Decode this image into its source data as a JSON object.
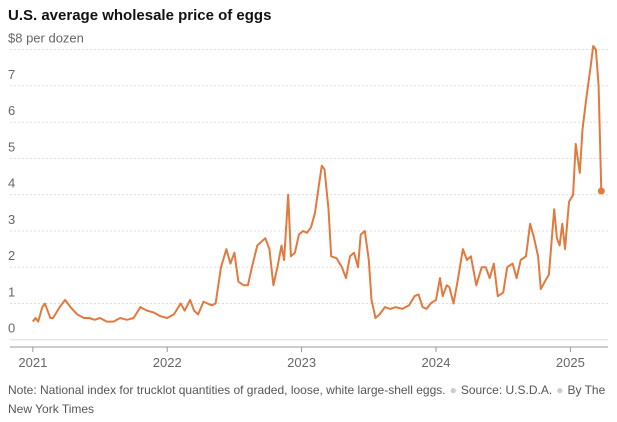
{
  "chart_data": {
    "type": "line",
    "title": "U.S. average wholesale price of eggs",
    "note": "Note: National index for trucklot quantities of graded, loose, white large-shell eggs.",
    "source": "Source: U.S.D.A.",
    "byline": "By The New York Times",
    "x": [
      2021.0,
      2021.02,
      2021.04,
      2021.07,
      2021.09,
      2021.11,
      2021.13,
      2021.15,
      2021.2,
      2021.24,
      2021.28,
      2021.33,
      2021.38,
      2021.42,
      2021.46,
      2021.5,
      2021.55,
      2021.6,
      2021.65,
      2021.7,
      2021.75,
      2021.8,
      2021.85,
      2021.9,
      2021.95,
      2022.0,
      2022.05,
      2022.1,
      2022.13,
      2022.17,
      2022.2,
      2022.23,
      2022.27,
      2022.3,
      2022.33,
      2022.36,
      2022.4,
      2022.44,
      2022.47,
      2022.5,
      2022.53,
      2022.57,
      2022.6,
      2022.63,
      2022.67,
      2022.7,
      2022.73,
      2022.76,
      2022.79,
      2022.82,
      2022.85,
      2022.87,
      2022.9,
      2022.92,
      2022.95,
      2022.98,
      2023.01,
      2023.04,
      2023.07,
      2023.1,
      2023.13,
      2023.15,
      2023.17,
      2023.2,
      2023.22,
      2023.26,
      2023.3,
      2023.33,
      2023.36,
      2023.39,
      2023.42,
      2023.44,
      2023.47,
      2023.5,
      2023.52,
      2023.55,
      2023.58,
      2023.62,
      2023.66,
      2023.7,
      2023.75,
      2023.8,
      2023.84,
      2023.87,
      2023.9,
      2023.93,
      2023.96,
      2024.0,
      2024.03,
      2024.05,
      2024.08,
      2024.1,
      2024.13,
      2024.16,
      2024.2,
      2024.23,
      2024.26,
      2024.3,
      2024.34,
      2024.37,
      2024.4,
      2024.43,
      2024.46,
      2024.5,
      2024.53,
      2024.57,
      2024.6,
      2024.63,
      2024.67,
      2024.7,
      2024.73,
      2024.76,
      2024.78,
      2024.81,
      2024.84,
      2024.88,
      2024.9,
      2024.92,
      2024.94,
      2024.96,
      2024.99,
      2025.02,
      2025.04,
      2025.07,
      2025.09,
      2025.12,
      2025.15,
      2025.17,
      2025.19,
      2025.21,
      2025.23
    ],
    "series": [
      {
        "color": "#e07a3f",
        "values": [
          0.5,
          0.6,
          0.5,
          0.9,
          1.0,
          0.8,
          0.6,
          0.6,
          0.9,
          1.1,
          0.9,
          0.7,
          0.6,
          0.6,
          0.55,
          0.6,
          0.5,
          0.5,
          0.6,
          0.55,
          0.6,
          0.9,
          0.8,
          0.75,
          0.65,
          0.6,
          0.7,
          1.0,
          0.8,
          1.1,
          0.8,
          0.7,
          1.05,
          1.0,
          0.95,
          1.0,
          2.0,
          2.5,
          2.1,
          2.4,
          1.6,
          1.5,
          1.5,
          2.0,
          2.6,
          2.7,
          2.8,
          2.5,
          1.5,
          2.0,
          2.6,
          2.2,
          4.0,
          2.3,
          2.4,
          2.9,
          3.0,
          2.95,
          3.1,
          3.5,
          4.3,
          4.8,
          4.7,
          3.6,
          2.3,
          2.25,
          2.0,
          1.7,
          2.3,
          2.4,
          2.0,
          2.9,
          3.0,
          2.2,
          1.1,
          0.6,
          0.7,
          0.9,
          0.85,
          0.9,
          0.85,
          0.95,
          1.2,
          1.25,
          0.9,
          0.85,
          1.0,
          1.1,
          1.7,
          1.2,
          1.5,
          1.45,
          1.0,
          1.6,
          2.5,
          2.2,
          2.3,
          1.5,
          2.0,
          2.0,
          1.7,
          2.1,
          1.2,
          1.3,
          2.0,
          2.1,
          1.7,
          2.2,
          2.3,
          3.2,
          2.8,
          2.3,
          1.4,
          1.6,
          1.8,
          3.6,
          2.8,
          2.6,
          3.2,
          2.5,
          3.8,
          4.0,
          5.4,
          4.6,
          5.8,
          6.7,
          7.5,
          8.1,
          8.0,
          7.0,
          4.1
        ]
      }
    ],
    "xlim": [
      2020.83,
      2025.28
    ],
    "xticks": [
      2021,
      2022,
      2023,
      2024,
      2025
    ],
    "ylim": [
      -0.2,
      8.1
    ],
    "yticks": [
      0,
      1,
      2,
      3,
      4,
      5,
      6,
      7,
      {
        "value": 8,
        "label": "$8 per dozen"
      }
    ],
    "grid": true
  }
}
